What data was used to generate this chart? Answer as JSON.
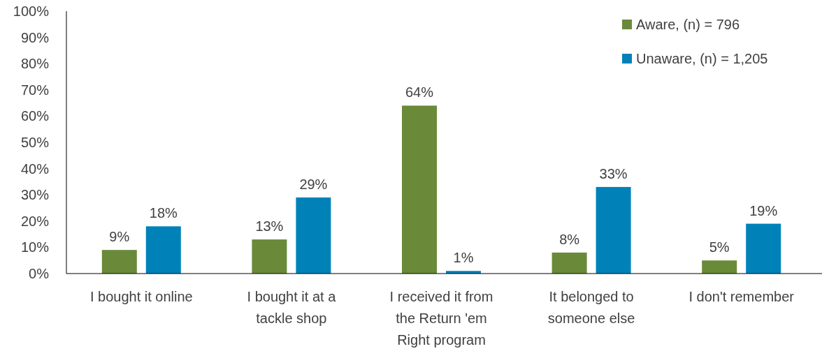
{
  "chart_data": {
    "type": "bar",
    "categories": [
      "I bought it online",
      "I bought it at a tackle shop",
      "I received it from the Return 'em Right program",
      "It belonged to someone else",
      "I don't remember"
    ],
    "series": [
      {
        "name": "Aware, (n) = 796",
        "color": "#6a8a3a",
        "values": [
          9,
          13,
          64,
          8,
          5
        ],
        "value_labels": [
          "9%",
          "13%",
          "64%",
          "8%",
          "5%"
        ]
      },
      {
        "name": "Unaware, (n) = 1,205",
        "color": "#0082b9",
        "values": [
          18,
          29,
          1,
          33,
          19
        ],
        "value_labels": [
          "18%",
          "29%",
          "1%",
          "33%",
          "19%"
        ]
      }
    ],
    "ylim": [
      0,
      100
    ],
    "yticks": [
      {
        "value": 0,
        "label": "0%"
      },
      {
        "value": 10,
        "label": "10%"
      },
      {
        "value": 20,
        "label": "20%"
      },
      {
        "value": 30,
        "label": "30%"
      },
      {
        "value": 40,
        "label": "40%"
      },
      {
        "value": 50,
        "label": "50%"
      },
      {
        "value": 60,
        "label": "60%"
      },
      {
        "value": 70,
        "label": "70%"
      },
      {
        "value": 80,
        "label": "80%"
      },
      {
        "value": 90,
        "label": "90%"
      },
      {
        "value": 100,
        "label": "100%"
      }
    ],
    "grid": false,
    "legend": "top right"
  }
}
